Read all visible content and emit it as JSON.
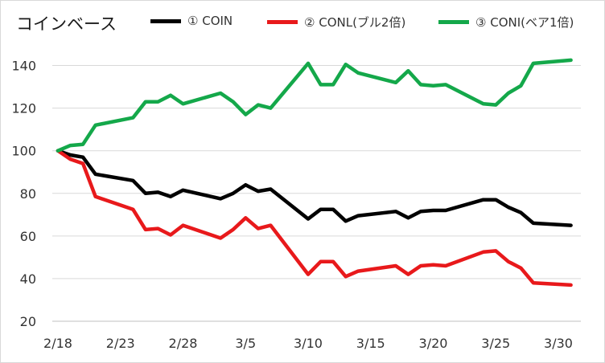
{
  "chart_data": {
    "type": "line",
    "title": "コインベース",
    "xlabel": "",
    "ylabel": "",
    "ylim": [
      20,
      150
    ],
    "yticks": [
      "20",
      "40",
      "60",
      "80",
      "100",
      "120",
      "140"
    ],
    "xticks": [
      "2/18",
      "2/23",
      "2/28",
      "3/5",
      "3/10",
      "3/15",
      "3/20",
      "3/25",
      "3/30"
    ],
    "xtick_days": [
      0,
      5,
      10,
      15,
      20,
      25,
      30,
      35,
      40
    ],
    "grid": "horizontal",
    "legend_position": "top",
    "series": [
      {
        "name": "① COIN",
        "color": "#000000",
        "points": [
          [
            0,
            100
          ],
          [
            1,
            98
          ],
          [
            2,
            97
          ],
          [
            3,
            89
          ],
          [
            6,
            86
          ],
          [
            7,
            80
          ],
          [
            8,
            80.5
          ],
          [
            9,
            78.5
          ],
          [
            10,
            81.5
          ],
          [
            13,
            77.5
          ],
          [
            14,
            80
          ],
          [
            15,
            84
          ],
          [
            16,
            81
          ],
          [
            17,
            82
          ],
          [
            20,
            68
          ],
          [
            21,
            72.5
          ],
          [
            22,
            72.5
          ],
          [
            23,
            67
          ],
          [
            24,
            69.5
          ],
          [
            27,
            71.5
          ],
          [
            28,
            68.5
          ],
          [
            29,
            71.5
          ],
          [
            30,
            72
          ],
          [
            31,
            72
          ],
          [
            34,
            77
          ],
          [
            35,
            77
          ],
          [
            36,
            73.5
          ],
          [
            37,
            71
          ],
          [
            38,
            66
          ],
          [
            41,
            65
          ]
        ]
      },
      {
        "name": "② CONL(ブル2倍)",
        "color": "#e8191b",
        "points": [
          [
            0,
            100
          ],
          [
            1,
            96
          ],
          [
            2,
            94
          ],
          [
            3,
            78.5
          ],
          [
            6,
            72.5
          ],
          [
            7,
            63
          ],
          [
            8,
            63.5
          ],
          [
            9,
            60.5
          ],
          [
            10,
            65
          ],
          [
            13,
            59
          ],
          [
            14,
            63
          ],
          [
            15,
            68.5
          ],
          [
            16,
            63.5
          ],
          [
            17,
            65
          ],
          [
            20,
            42
          ],
          [
            21,
            48
          ],
          [
            22,
            48
          ],
          [
            23,
            41
          ],
          [
            24,
            43.5
          ],
          [
            27,
            46
          ],
          [
            28,
            42
          ],
          [
            29,
            46
          ],
          [
            30,
            46.5
          ],
          [
            31,
            46
          ],
          [
            34,
            52.5
          ],
          [
            35,
            53
          ],
          [
            36,
            48
          ],
          [
            37,
            45
          ],
          [
            38,
            38
          ],
          [
            41,
            37
          ]
        ]
      },
      {
        "name": "③ CONI(ベア1倍)",
        "color": "#14a84a",
        "points": [
          [
            0,
            100
          ],
          [
            1,
            102.5
          ],
          [
            2,
            103
          ],
          [
            3,
            112
          ],
          [
            6,
            115.5
          ],
          [
            7,
            123
          ],
          [
            8,
            123
          ],
          [
            9,
            126
          ],
          [
            10,
            122
          ],
          [
            13,
            127
          ],
          [
            14,
            123
          ],
          [
            15,
            117
          ],
          [
            16,
            121.5
          ],
          [
            17,
            120
          ],
          [
            20,
            141
          ],
          [
            21,
            131
          ],
          [
            22,
            131
          ],
          [
            23,
            140.5
          ],
          [
            24,
            136.5
          ],
          [
            27,
            132
          ],
          [
            28,
            137.5
          ],
          [
            29,
            131
          ],
          [
            30,
            130.5
          ],
          [
            31,
            131
          ],
          [
            34,
            122
          ],
          [
            35,
            121.5
          ],
          [
            36,
            127
          ],
          [
            37,
            130.5
          ],
          [
            38,
            141
          ],
          [
            41,
            142.5
          ]
        ]
      }
    ]
  }
}
